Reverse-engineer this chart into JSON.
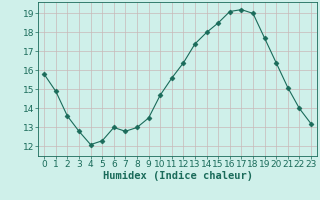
{
  "x": [
    0,
    1,
    2,
    3,
    4,
    5,
    6,
    7,
    8,
    9,
    10,
    11,
    12,
    13,
    14,
    15,
    16,
    17,
    18,
    19,
    20,
    21,
    22,
    23
  ],
  "y": [
    15.8,
    14.9,
    13.6,
    12.8,
    12.1,
    12.3,
    13.0,
    12.8,
    13.0,
    13.5,
    14.7,
    15.6,
    16.4,
    17.4,
    18.0,
    18.5,
    19.1,
    19.2,
    19.0,
    17.7,
    16.4,
    15.1,
    14.0,
    13.2
  ],
  "line_color": "#1a6b5a",
  "marker": "D",
  "marker_size": 2.5,
  "bg_color": "#cff0ea",
  "grid_color": "#c8b8b8",
  "xlabel": "Humidex (Indice chaleur)",
  "ylim": [
    11.5,
    19.6
  ],
  "xlim": [
    -0.5,
    23.5
  ],
  "yticks": [
    12,
    13,
    14,
    15,
    16,
    17,
    18,
    19
  ],
  "xticks": [
    0,
    1,
    2,
    3,
    4,
    5,
    6,
    7,
    8,
    9,
    10,
    11,
    12,
    13,
    14,
    15,
    16,
    17,
    18,
    19,
    20,
    21,
    22,
    23
  ],
  "tick_fontsize": 6.5,
  "xlabel_fontsize": 7.5
}
